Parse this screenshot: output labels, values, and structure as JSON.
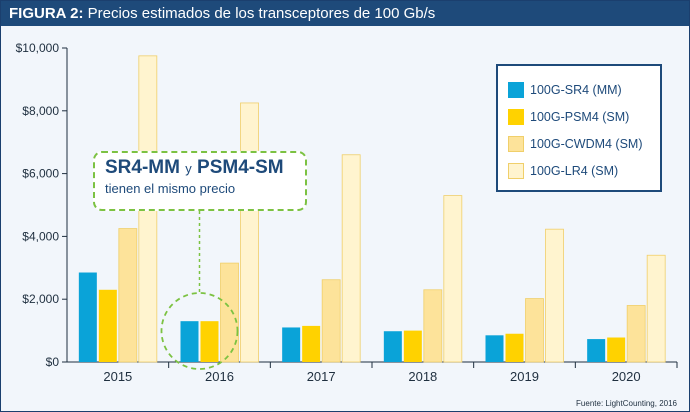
{
  "header": {
    "label": "FIGURA 2:",
    "title": "Precios estimados de los transceptores de 100 Gb/s"
  },
  "callout": {
    "part1": "SR4-MM",
    "connector": "y",
    "part2": "PSM4-SM",
    "subtitle": "tienen el mismo precio"
  },
  "source": "Fuente: LightCounting, 2016",
  "chart_data": {
    "type": "bar",
    "title": "Precios estimados de los transceptores de 100 Gb/s",
    "categories": [
      "2015",
      "2016",
      "2017",
      "2018",
      "2019",
      "2020"
    ],
    "ylim": [
      0,
      10000
    ],
    "yticks": [
      0,
      2000,
      4000,
      6000,
      8000,
      10000
    ],
    "ytick_labels": [
      "$0",
      "$2,000",
      "$4,000",
      "$6,000",
      "$8,000",
      "$10,000"
    ],
    "grid": false,
    "legend_position": "top-right",
    "series": [
      {
        "name": "100G-SR4 (MM)",
        "color": "#0aa3d8",
        "values": [
          2850,
          1300,
          1100,
          980,
          850,
          730
        ]
      },
      {
        "name": "100G-PSM4 (SM)",
        "color": "#ffd200",
        "values": [
          2300,
          1300,
          1150,
          1000,
          900,
          780
        ]
      },
      {
        "name": "100G-CWDM4 (SM)",
        "color": "#fde39a",
        "values": [
          4250,
          3150,
          2620,
          2300,
          2020,
          1800
        ]
      },
      {
        "name": "100G-LR4 (SM)",
        "color": "#fff4cf",
        "values": [
          9750,
          8250,
          6600,
          5300,
          4230,
          3400
        ]
      }
    ]
  }
}
